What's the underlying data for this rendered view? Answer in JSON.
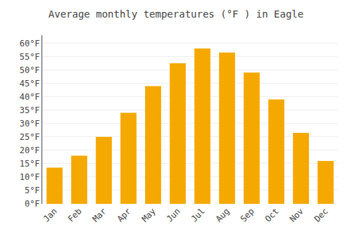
{
  "chart_data": {
    "type": "bar",
    "title": "Average monthly temperatures (°F ) in Eagle",
    "categories": [
      "Jan",
      "Feb",
      "Mar",
      "Apr",
      "May",
      "Jun",
      "Jul",
      "Aug",
      "Sep",
      "Oct",
      "Nov",
      "Dec"
    ],
    "values": [
      13.5,
      18.0,
      25.0,
      34.0,
      44.0,
      52.5,
      58.0,
      56.5,
      49.0,
      39.0,
      26.5,
      16.0
    ],
    "color": "#F5A800",
    "ylim": [
      0,
      63
    ],
    "yticks": [
      {
        "value": 0,
        "label": "0°F"
      },
      {
        "value": 5,
        "label": "5°F"
      },
      {
        "value": 10,
        "label": "10°F"
      },
      {
        "value": 15,
        "label": "15°F"
      },
      {
        "value": 20,
        "label": "20°F"
      },
      {
        "value": 25,
        "label": "25°F"
      },
      {
        "value": 30,
        "label": "30°F"
      },
      {
        "value": 35,
        "label": "35°F"
      },
      {
        "value": 40,
        "label": "40°F"
      },
      {
        "value": 45,
        "label": "45°F"
      },
      {
        "value": 50,
        "label": "50°F"
      },
      {
        "value": 55,
        "label": "55°F"
      },
      {
        "value": 60,
        "label": "60°F"
      }
    ],
    "grid": true
  }
}
